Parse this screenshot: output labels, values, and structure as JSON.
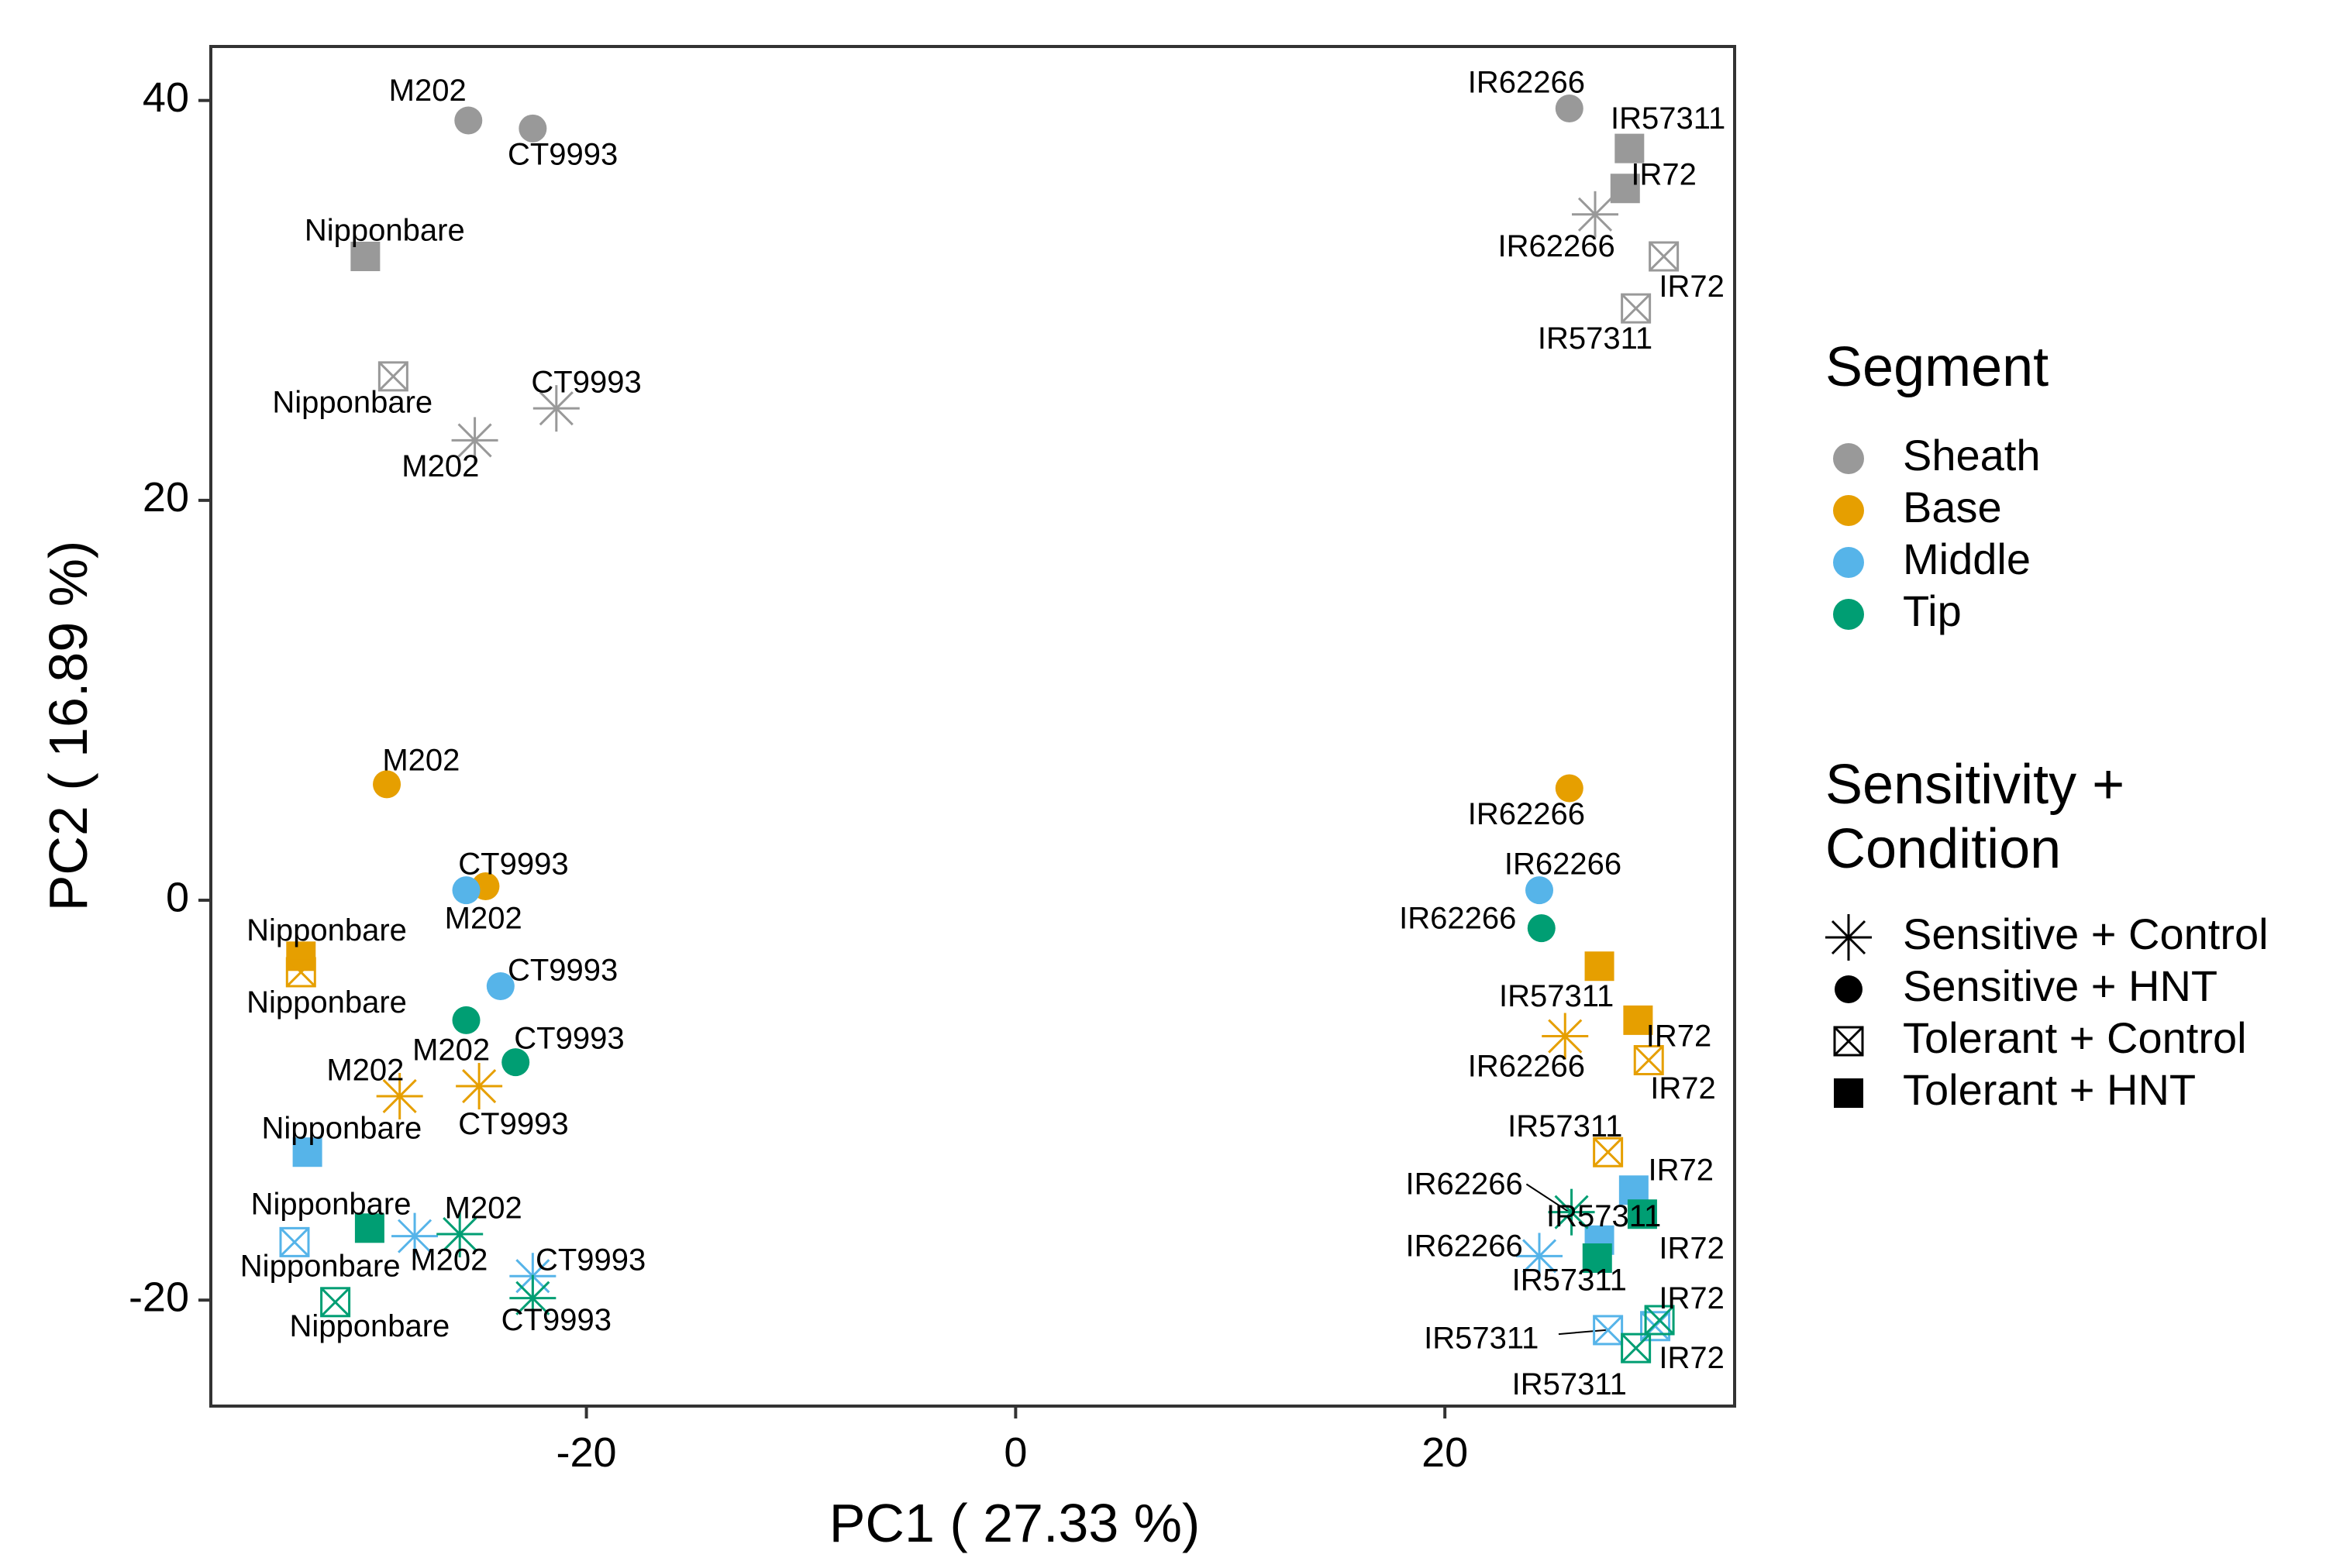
{
  "chart_data": {
    "type": "scatter",
    "title": "",
    "xlabel": "PC1 ( 27.33 %)",
    "ylabel": "PC2 ( 16.89 %)",
    "xlim": [
      -37.5,
      33.5
    ],
    "ylim": [
      -25.3,
      42.7
    ],
    "xticks": [
      -20,
      0,
      20
    ],
    "yticks": [
      -20,
      0,
      20,
      40
    ],
    "xtick_labels": [
      "-20",
      "0",
      "20"
    ],
    "ytick_labels": [
      "-20",
      "0",
      "20",
      "40"
    ],
    "grid": false,
    "legend_position": "right",
    "segment_colors": {
      "Sheath": "#999999",
      "Base": "#E69F00",
      "Middle": "#56B4E9",
      "Tip": "#009E73"
    },
    "legend": {
      "segment": {
        "title": "Segment",
        "items": [
          "Sheath",
          "Base",
          "Middle",
          "Tip"
        ]
      },
      "condition": {
        "title_line1": "Sensitivity +",
        "title_line2": "Condition",
        "items": [
          {
            "label": "Sensitive + Control",
            "shape": "asterisk"
          },
          {
            "label": "Sensitive + HNT",
            "shape": "circle"
          },
          {
            "label": "Tolerant + Control",
            "shape": "boxx"
          },
          {
            "label": "Tolerant + HNT",
            "shape": "square"
          }
        ]
      }
    },
    "points": [
      {
        "x": -25.5,
        "y": 39.0,
        "segment": "Sheath",
        "shape": "circle",
        "label": "M202"
      },
      {
        "x": -22.5,
        "y": 38.6,
        "segment": "Sheath",
        "shape": "circle",
        "label": "CT9993"
      },
      {
        "x": 25.8,
        "y": 39.6,
        "segment": "Sheath",
        "shape": "circle",
        "label": "IR62266"
      },
      {
        "x": -30.3,
        "y": 32.2,
        "segment": "Sheath",
        "shape": "square",
        "label": "Nipponbare"
      },
      {
        "x": 28.6,
        "y": 37.6,
        "segment": "Sheath",
        "shape": "square",
        "label": "IR57311"
      },
      {
        "x": 28.4,
        "y": 35.6,
        "segment": "Sheath",
        "shape": "square",
        "label": "IR72"
      },
      {
        "x": -29.0,
        "y": 26.2,
        "segment": "Sheath",
        "shape": "boxx",
        "label": "Nipponbare"
      },
      {
        "x": 30.2,
        "y": 32.2,
        "segment": "Sheath",
        "shape": "boxx",
        "label": "IR72"
      },
      {
        "x": 28.9,
        "y": 29.6,
        "segment": "Sheath",
        "shape": "boxx",
        "label": "IR57311"
      },
      {
        "x": -21.4,
        "y": 24.6,
        "segment": "Sheath",
        "shape": "asterisk",
        "label": "CT9993"
      },
      {
        "x": -25.2,
        "y": 23.0,
        "segment": "Sheath",
        "shape": "asterisk",
        "label": "M202"
      },
      {
        "x": 27.0,
        "y": 34.3,
        "segment": "Sheath",
        "shape": "asterisk",
        "label": "IR62266"
      },
      {
        "x": -29.3,
        "y": 5.8,
        "segment": "Base",
        "shape": "circle",
        "label": "M202"
      },
      {
        "x": -24.7,
        "y": 0.7,
        "segment": "Base",
        "shape": "circle",
        "label": "CT9993"
      },
      {
        "x": 25.8,
        "y": 5.6,
        "segment": "Base",
        "shape": "circle",
        "label": "IR62266"
      },
      {
        "x": -33.3,
        "y": -2.8,
        "segment": "Base",
        "shape": "square",
        "label": "Nipponbare"
      },
      {
        "x": 27.2,
        "y": -3.3,
        "segment": "Base",
        "shape": "square",
        "label": "IR57311"
      },
      {
        "x": 29.0,
        "y": -6.0,
        "segment": "Base",
        "shape": "square",
        "label": "IR72"
      },
      {
        "x": -33.3,
        "y": -3.6,
        "segment": "Base",
        "shape": "boxx",
        "label": "Nipponbare"
      },
      {
        "x": 29.5,
        "y": -8.0,
        "segment": "Base",
        "shape": "boxx",
        "label": "IR72"
      },
      {
        "x": 27.6,
        "y": -12.6,
        "segment": "Base",
        "shape": "boxx",
        "label": "IR57311"
      },
      {
        "x": -28.7,
        "y": -9.8,
        "segment": "Base",
        "shape": "asterisk",
        "label": "M202"
      },
      {
        "x": -25.0,
        "y": -9.3,
        "segment": "Base",
        "shape": "asterisk",
        "label": "CT9993"
      },
      {
        "x": 25.6,
        "y": -6.8,
        "segment": "Base",
        "shape": "asterisk",
        "label": "IR62266"
      },
      {
        "x": -25.6,
        "y": 0.5,
        "segment": "Middle",
        "shape": "circle",
        "label": "M202"
      },
      {
        "x": -24.0,
        "y": -4.3,
        "segment": "Middle",
        "shape": "circle",
        "label": "CT9993"
      },
      {
        "x": 24.4,
        "y": 0.5,
        "segment": "Middle",
        "shape": "circle",
        "label": "IR62266"
      },
      {
        "x": -33.0,
        "y": -12.6,
        "segment": "Middle",
        "shape": "square",
        "label": "Nipponbare"
      },
      {
        "x": 28.8,
        "y": -14.5,
        "segment": "Middle",
        "shape": "square",
        "label": "IR72"
      },
      {
        "x": 27.2,
        "y": -17.0,
        "segment": "Middle",
        "shape": "square",
        "label": "IR57311"
      },
      {
        "x": -33.6,
        "y": -17.1,
        "segment": "Middle",
        "shape": "boxx",
        "label": "Nipponbare"
      },
      {
        "x": 27.6,
        "y": -21.5,
        "segment": "Middle",
        "shape": "boxx",
        "label": "IR57311"
      },
      {
        "x": 29.8,
        "y": -21.3,
        "segment": "Middle",
        "shape": "boxx",
        "label": "IR72"
      },
      {
        "x": -28.0,
        "y": -16.8,
        "segment": "Middle",
        "shape": "asterisk",
        "label": "M202"
      },
      {
        "x": -22.5,
        "y": -18.8,
        "segment": "Middle",
        "shape": "asterisk",
        "label": "CT9993"
      },
      {
        "x": 24.4,
        "y": -17.8,
        "segment": "Middle",
        "shape": "asterisk",
        "label": "IR62266"
      },
      {
        "x": -25.6,
        "y": -6.0,
        "segment": "Tip",
        "shape": "circle",
        "label": "M202"
      },
      {
        "x": -23.3,
        "y": -8.1,
        "segment": "Tip",
        "shape": "circle",
        "label": "CT9993"
      },
      {
        "x": 24.5,
        "y": -1.4,
        "segment": "Tip",
        "shape": "circle",
        "label": "IR62266"
      },
      {
        "x": -30.1,
        "y": -16.4,
        "segment": "Tip",
        "shape": "square",
        "label": "Nipponbare"
      },
      {
        "x": 29.2,
        "y": -15.7,
        "segment": "Tip",
        "shape": "square",
        "label": "IR72"
      },
      {
        "x": 27.1,
        "y": -17.9,
        "segment": "Tip",
        "shape": "square",
        "label": "IR57311"
      },
      {
        "x": -31.7,
        "y": -20.1,
        "segment": "Tip",
        "shape": "boxx",
        "label": "Nipponbare"
      },
      {
        "x": 30.0,
        "y": -21.0,
        "segment": "Tip",
        "shape": "boxx",
        "label": "IR72"
      },
      {
        "x": 28.9,
        "y": -22.4,
        "segment": "Tip",
        "shape": "boxx",
        "label": "IR57311"
      },
      {
        "x": -25.9,
        "y": -16.7,
        "segment": "Tip",
        "shape": "asterisk",
        "label": "M202"
      },
      {
        "x": -22.5,
        "y": -19.9,
        "segment": "Tip",
        "shape": "asterisk",
        "label": "CT9993"
      },
      {
        "x": 25.9,
        "y": -15.6,
        "segment": "Tip",
        "shape": "asterisk",
        "label": "IR62266"
      }
    ],
    "annotations": [
      {
        "text": "M202",
        "x": -27.4,
        "y": 40.4
      },
      {
        "text": "CT9993",
        "x": -21.1,
        "y": 37.2
      },
      {
        "text": "Nipponbare",
        "x": -29.4,
        "y": 33.4
      },
      {
        "text": "Nipponbare",
        "x": -30.9,
        "y": 24.8
      },
      {
        "text": "CT9993",
        "x": -20.0,
        "y": 25.8
      },
      {
        "text": "M202",
        "x": -26.8,
        "y": 21.6
      },
      {
        "text": "IR62266",
        "x": 23.8,
        "y": 40.8
      },
      {
        "text": "IR57311",
        "x": 30.4,
        "y": 39.0
      },
      {
        "text": "IR72",
        "x": 30.2,
        "y": 36.2
      },
      {
        "text": "IR62266",
        "x": 25.2,
        "y": 32.6
      },
      {
        "text": "IR72",
        "x": 31.5,
        "y": 30.6
      },
      {
        "text": "IR57311",
        "x": 27.0,
        "y": 28.0
      },
      {
        "text": "M202",
        "x": -27.7,
        "y": 6.9
      },
      {
        "text": "CT9993",
        "x": -23.4,
        "y": 1.7
      },
      {
        "text": "M202",
        "x": -24.8,
        "y": -1.0
      },
      {
        "text": "Nipponbare",
        "x": -32.1,
        "y": -1.6
      },
      {
        "text": "Nipponbare",
        "x": -32.1,
        "y": -5.2
      },
      {
        "text": "CT9993",
        "x": -21.1,
        "y": -3.6
      },
      {
        "text": "CT9993",
        "x": -20.8,
        "y": -7.0
      },
      {
        "text": "M202",
        "x": -26.3,
        "y": -7.6
      },
      {
        "text": "M202",
        "x": -30.3,
        "y": -8.6
      },
      {
        "text": "CT9993",
        "x": -23.4,
        "y": -11.3
      },
      {
        "text": "Nipponbare",
        "x": -31.4,
        "y": -11.5
      },
      {
        "text": "Nipponbare",
        "x": -31.9,
        "y": -15.3
      },
      {
        "text": "M202",
        "x": -24.8,
        "y": -15.5
      },
      {
        "text": "Nipponbare",
        "x": -32.4,
        "y": -18.4
      },
      {
        "text": "M202",
        "x": -26.4,
        "y": -18.1
      },
      {
        "text": "CT9993",
        "x": -19.8,
        "y": -18.1
      },
      {
        "text": "Nipponbare",
        "x": -30.1,
        "y": -21.4
      },
      {
        "text": "CT9993",
        "x": -21.4,
        "y": -21.1
      },
      {
        "text": "IR62266",
        "x": 23.8,
        "y": 4.2
      },
      {
        "text": "IR62266",
        "x": 25.5,
        "y": 1.7
      },
      {
        "text": "IR62266",
        "x": 20.6,
        "y": -1.0
      },
      {
        "text": "IR57311",
        "x": 25.2,
        "y": -4.9
      },
      {
        "text": "IR72",
        "x": 30.9,
        "y": -6.9
      },
      {
        "text": "IR62266",
        "x": 23.8,
        "y": -8.4
      },
      {
        "text": "IR72",
        "x": 31.1,
        "y": -9.5
      },
      {
        "text": "IR57311",
        "x": 25.6,
        "y": -11.4
      },
      {
        "text": "IR72",
        "x": 31.0,
        "y": -13.6
      },
      {
        "text": "IR62266",
        "x": 20.9,
        "y": -14.3
      },
      {
        "text": "IR57311",
        "x": 27.4,
        "y": -15.9
      },
      {
        "text": "IR62266",
        "x": 20.9,
        "y": -17.4
      },
      {
        "text": "IR72",
        "x": 31.5,
        "y": -17.5
      },
      {
        "text": "IR57311",
        "x": 25.8,
        "y": -19.1
      },
      {
        "text": "IR72",
        "x": 31.5,
        "y": -20.0
      },
      {
        "text": "IR57311",
        "x": 21.7,
        "y": -22.0
      },
      {
        "text": "IR72",
        "x": 31.5,
        "y": -23.0
      },
      {
        "text": "IR57311",
        "x": 25.8,
        "y": -24.3
      }
    ],
    "leader_lines": [
      {
        "x1": 23.8,
        "y1": -14.2,
        "x2": 25.8,
        "y2": -15.6
      },
      {
        "x1": 25.3,
        "y1": -21.7,
        "x2": 27.5,
        "y2": -21.5
      }
    ]
  }
}
